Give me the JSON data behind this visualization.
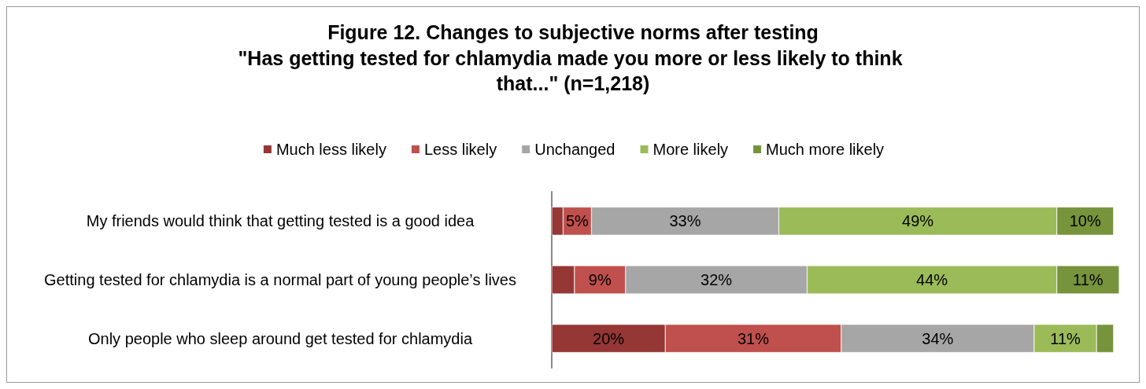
{
  "chart_data": {
    "type": "bar",
    "orientation": "horizontal",
    "stacked": true,
    "title": "Figure 12. Changes to subjective norms after testing",
    "subtitle": "\"Has getting tested for chlamydia made you more or less likely to think that...\" (n=1,218)",
    "legend": "top",
    "categories": [
      "My friends would think that getting tested is a good idea",
      "Getting tested for chlamydia is a normal part of young people’s lives",
      "Only people who sleep around get tested for chlamydia"
    ],
    "series": [
      {
        "name": "Much less likely",
        "color": "#953735",
        "values": [
          2,
          4,
          20
        ],
        "value_labels": [
          null,
          null,
          "20%"
        ]
      },
      {
        "name": "Less likely",
        "color": "#c0504d",
        "values": [
          5,
          9,
          31
        ],
        "value_labels": [
          "5%",
          "9%",
          "31%"
        ]
      },
      {
        "name": "Unchanged",
        "color": "#a6a6a6",
        "values": [
          33,
          32,
          34
        ],
        "value_labels": [
          "33%",
          "32%",
          "34%"
        ]
      },
      {
        "name": "More likely",
        "color": "#9bbb59",
        "values": [
          49,
          44,
          11
        ],
        "value_labels": [
          "49%",
          "44%",
          "11%"
        ]
      },
      {
        "name": "Much more likely",
        "color": "#77933c",
        "values": [
          10,
          11,
          3
        ],
        "value_labels": [
          "10%",
          "11%",
          null
        ]
      }
    ]
  }
}
